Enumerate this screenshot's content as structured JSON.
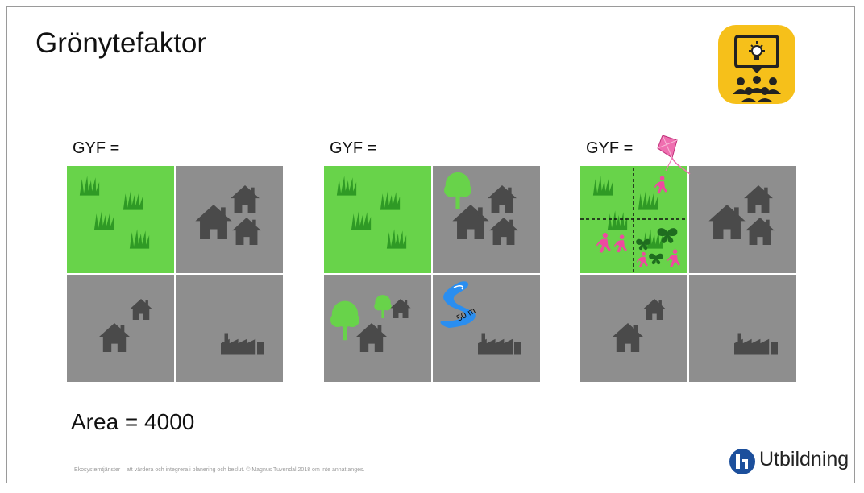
{
  "title": "Grönytefaktor",
  "panels": [
    {
      "label": "GYF ="
    },
    {
      "label": "GYF ="
    },
    {
      "label": "GYF ="
    }
  ],
  "stream_label": "50 m",
  "area_text": "Area = 4000",
  "footer": "Ekosystemtjänster – att värdera och integrera i planering och beslut. © Magnus Tuvendal 2018 om inte annat anges.",
  "logo_text": "Utbildning",
  "colors": {
    "grass": "#68d34a",
    "grass_icon": "#2f9a25",
    "gray": "#8e8e8e",
    "house": "#4a4a4a",
    "water": "#2a8ef0",
    "kite": "#ef6fb0",
    "people": "#ee4aa0",
    "butterfly": "#1f6d1f",
    "badge": "#f6c01a"
  },
  "icons": [
    "presenter-icon",
    "grass-icon",
    "house-icon",
    "factory-icon",
    "tree-icon",
    "stream-icon",
    "kite-icon",
    "person-icon",
    "butterfly-icon"
  ]
}
